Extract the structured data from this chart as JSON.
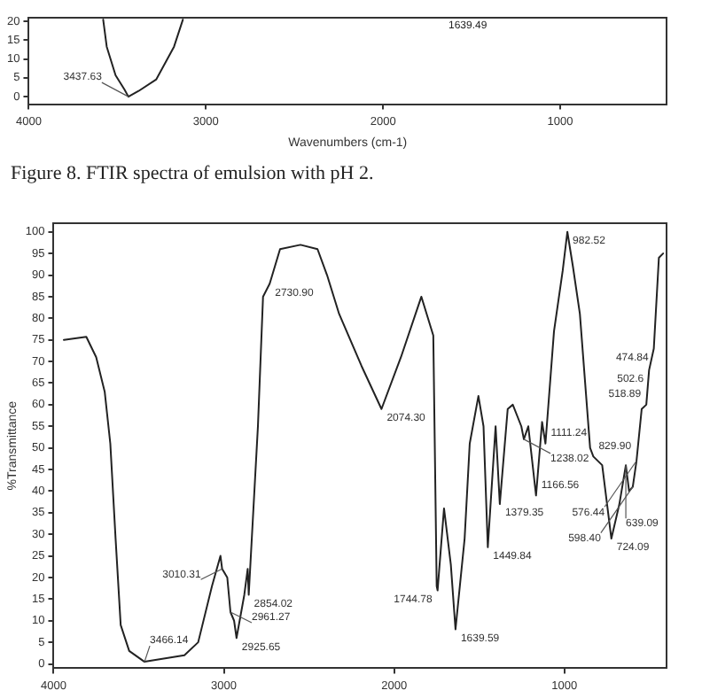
{
  "chart_data": [
    {
      "type": "line",
      "xlabel": "Wavenumbers (cm-1)",
      "x": [
        3580,
        3560,
        3510,
        3460,
        3437.63,
        3380,
        3280,
        3180,
        3130
      ],
      "values": [
        20.5,
        13.3,
        5.7,
        1.9,
        0,
        1.5,
        4.6,
        13.3,
        20.5
      ],
      "color": "#222222",
      "xlim": [
        4000,
        400
      ],
      "ylim": [
        -2,
        21
      ],
      "xticks": [
        4000,
        3000,
        2000,
        1000
      ],
      "yticks": [
        0,
        5,
        10,
        15,
        20
      ],
      "grid": false,
      "legend": false,
      "marker": "none",
      "annotations": [
        {
          "text": "3437.63",
          "x": 3437.63,
          "y": 0
        },
        "1639.49",
        "Figure 8. FTIR spectra of emulsion with pH 2."
      ]
    },
    {
      "type": "line",
      "ylabel": "%Transmittance",
      "x": [
        3940,
        3808,
        3750,
        3700,
        3667,
        3636,
        3606,
        3556,
        3466.14,
        3232,
        3151,
        3070,
        3020,
        3010.31,
        2980,
        2961.27,
        2940,
        2925.65,
        2880,
        2860,
        2854.02,
        2800,
        2770,
        2730.9,
        2670,
        2550,
        2450,
        2394,
        2323,
        2192,
        2074.3,
        1960,
        1840,
        1770,
        1750,
        1744.78,
        1707,
        1667,
        1639.59,
        1586,
        1556,
        1505,
        1475,
        1449.84,
        1404,
        1379.35,
        1333,
        1303,
        1253,
        1238.02,
        1212,
        1166.56,
        1131,
        1111.24,
        1061,
        1010,
        982.52,
        950,
        909,
        849,
        829.9,
        778,
        724.09,
        677,
        639.09,
        620,
        598.4,
        576.44,
        546,
        518.89,
        502.6,
        474.84,
        445,
        420
      ],
      "values": [
        75,
        75.7,
        71,
        63,
        51,
        29,
        9,
        3,
        0.5,
        2,
        5,
        18,
        25,
        22,
        20,
        12,
        10,
        6,
        16,
        22,
        16,
        55,
        85,
        88,
        96,
        97,
        96,
        90,
        81,
        69,
        59,
        71,
        85,
        76,
        18,
        17,
        36,
        23,
        8,
        29,
        51,
        62,
        55,
        27,
        55,
        37,
        59,
        60,
        55,
        52,
        55,
        39,
        56,
        51,
        77,
        91,
        100,
        92,
        81,
        50,
        48,
        46,
        29,
        37,
        46,
        40,
        41,
        47,
        59,
        60,
        68,
        73,
        94,
        95
      ],
      "color": "#222222",
      "xlim": [
        4000,
        400
      ],
      "ylim": [
        -1,
        102
      ],
      "xticks": [
        4000,
        3000,
        2000,
        1000
      ],
      "yticks": [
        0,
        5,
        10,
        15,
        20,
        25,
        30,
        35,
        40,
        45,
        50,
        55,
        60,
        65,
        70,
        75,
        80,
        85,
        90,
        95,
        100
      ],
      "grid": false,
      "legend": false,
      "marker": "none",
      "annotations": [
        {
          "text": "3466.14",
          "x": 3466.14,
          "y": 0.5
        },
        {
          "text": "3010.31",
          "x": 3010.31,
          "y": 22
        },
        {
          "text": "2961.27",
          "x": 2961.27,
          "y": 12
        },
        {
          "text": "2925.65",
          "x": 2925.65,
          "y": 6
        },
        {
          "text": "2854.02",
          "x": 2854.02,
          "y": 16
        },
        {
          "text": "2730.90",
          "x": 2730.9,
          "y": 88
        },
        {
          "text": "2074.30",
          "x": 2074.3,
          "y": 59
        },
        {
          "text": "1744.78",
          "x": 1744.78,
          "y": 17
        },
        {
          "text": "1639.59",
          "x": 1639.59,
          "y": 8
        },
        {
          "text": "1449.84",
          "x": 1449.84,
          "y": 27
        },
        {
          "text": "1379.35",
          "x": 1379.35,
          "y": 37
        },
        {
          "text": "1238.02",
          "x": 1238.02,
          "y": 52
        },
        {
          "text": "1166.56",
          "x": 1166.56,
          "y": 39
        },
        {
          "text": "1111.24",
          "x": 1111.24,
          "y": 51
        },
        {
          "text": "982.52",
          "x": 982.52,
          "y": 100
        },
        {
          "text": "829.90",
          "x": 829.9,
          "y": 48
        },
        {
          "text": "724.09",
          "x": 724.09,
          "y": 29
        },
        {
          "text": "639.09",
          "x": 639.09,
          "y": 46
        },
        {
          "text": "598.40",
          "x": 598.4,
          "y": 41
        },
        {
          "text": "576.44",
          "x": 576.44,
          "y": 47
        },
        {
          "text": "518.89",
          "x": 518.89,
          "y": 60
        },
        {
          "text": "502.6",
          "x": 502.6,
          "y": 68
        },
        {
          "text": "474.84",
          "x": 474.84,
          "y": 73
        }
      ]
    }
  ]
}
